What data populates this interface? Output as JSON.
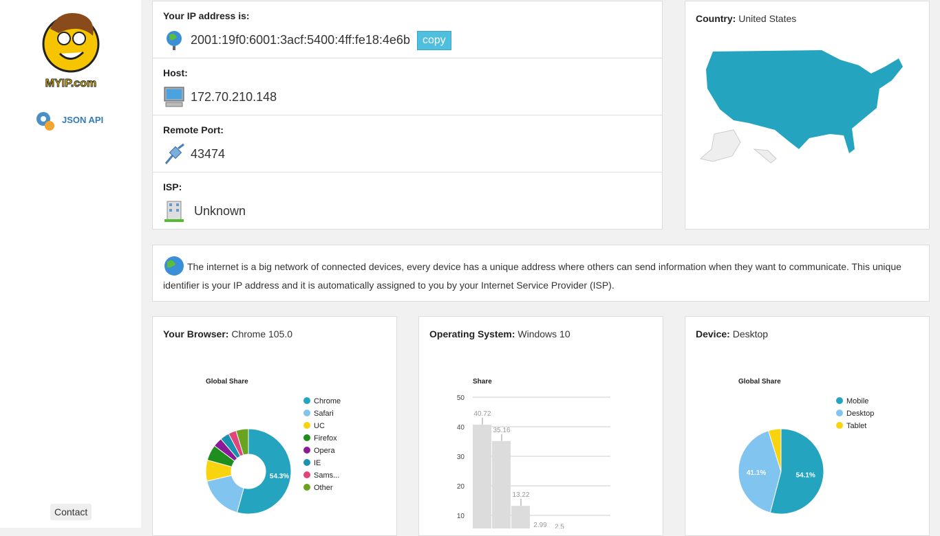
{
  "sidebar": {
    "logo_text": "MYIP.com",
    "json_api": "JSON API",
    "contact": "Contact"
  },
  "ip_info": [
    {
      "label": "Your IP address is:",
      "value": "2001:19f0:6001:3acf:5400:4ff:fe18:4e6b",
      "button": "copy"
    },
    {
      "label": "Host:",
      "value": "172.70.210.148"
    },
    {
      "label": "Remote Port:",
      "value": "43474"
    },
    {
      "label": "ISP:",
      "value": "Unknown"
    }
  ],
  "country": {
    "label": "Country:",
    "value": "United States"
  },
  "intro": "The internet is a big network of connected devices, every device has a unique address where others can send information when they want to communicate. This unique identifier is your IP address and it is automatically assigned to you by your Internet Service Provider (ISP).",
  "cards": [
    {
      "label": "Your Browser:",
      "value": "Chrome 105.0"
    },
    {
      "label": "Operating System:",
      "value": "Windows 10"
    },
    {
      "label": "Device:",
      "value": "Desktop"
    }
  ],
  "chart_data": [
    {
      "type": "pie",
      "donut": true,
      "title": "Global Share",
      "categories": [
        "Chrome",
        "Safari",
        "UC",
        "Firefox",
        "Opera",
        "IE",
        "Sams...",
        "Other"
      ],
      "values": [
        54.3,
        17,
        8,
        6,
        3.5,
        3.5,
        3,
        4.7
      ],
      "value_labels": [
        "54.3%",
        null,
        null,
        null,
        null,
        null,
        null,
        null
      ],
      "colors": [
        "#24a4bf",
        "#82c4f0",
        "#f8d30f",
        "#1e8f1e",
        "#8b1a9b",
        "#1991b1",
        "#e0457b",
        "#6aa320"
      ]
    },
    {
      "type": "bar",
      "title": "Share",
      "categories": [
        null,
        null,
        null,
        null,
        null
      ],
      "values": [
        40.72,
        35.16,
        13.22,
        2.99,
        2.5
      ],
      "color": "#dcdcdc",
      "ylim": [
        0,
        50
      ],
      "yticks": [
        10,
        20,
        30,
        40,
        50
      ],
      "grid": true
    },
    {
      "type": "pie",
      "donut": false,
      "title": "Global Share",
      "categories": [
        "Mobile",
        "Desktop",
        "Tablet"
      ],
      "values": [
        54.1,
        41.1,
        4.8
      ],
      "value_labels": [
        "54.1%",
        "41.1%",
        null
      ],
      "colors": [
        "#24a4bf",
        "#82c4f0",
        "#f8d30f"
      ]
    }
  ]
}
